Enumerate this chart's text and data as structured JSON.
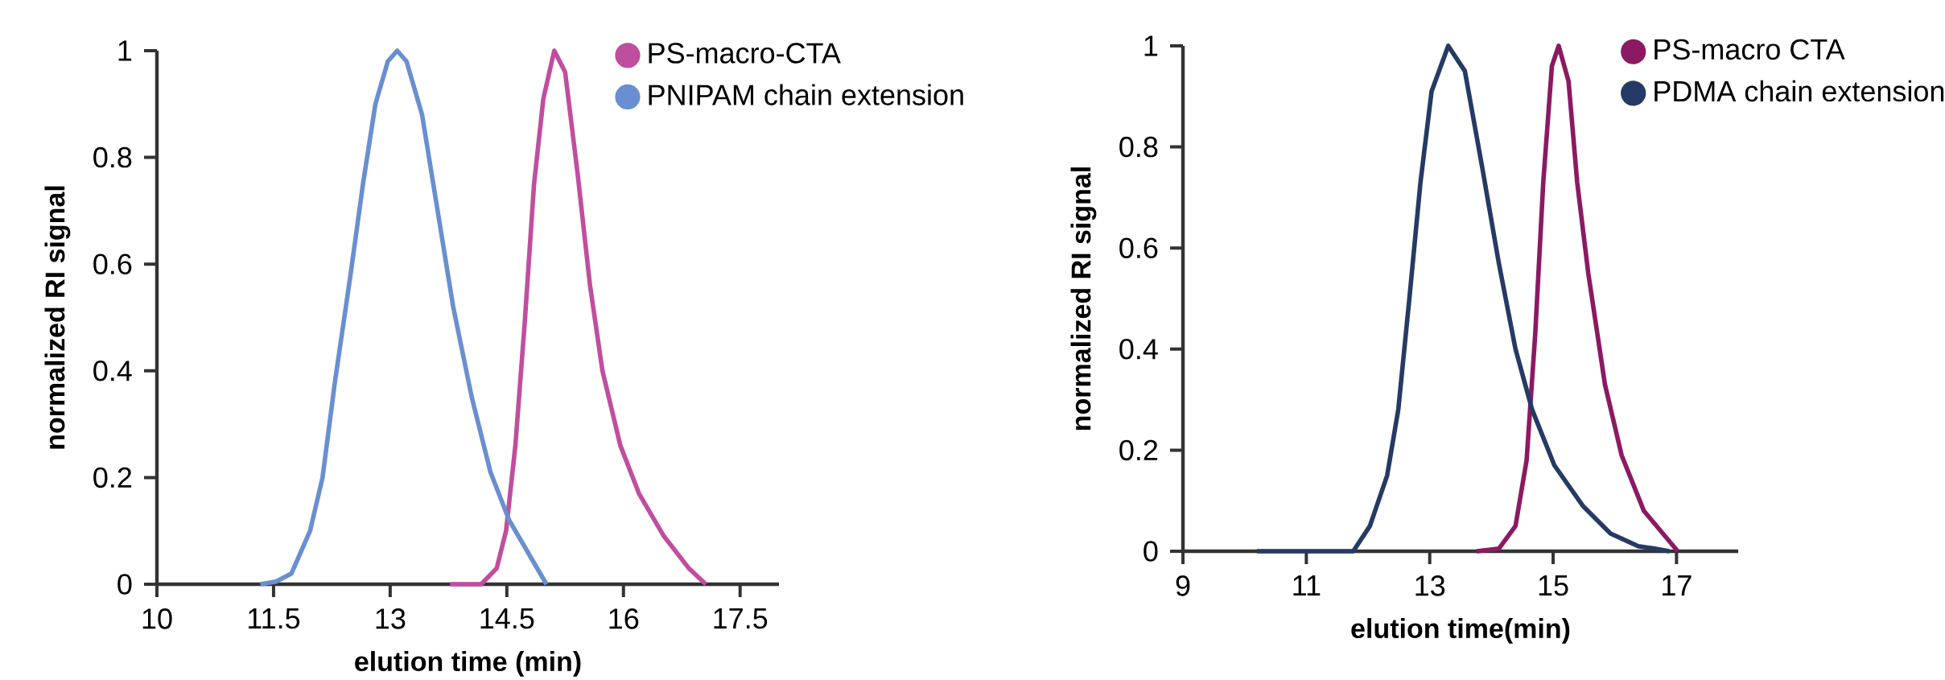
{
  "chart_data": [
    {
      "type": "line",
      "xlabel": "elution time (min)",
      "ylabel": "normalized RI signal",
      "xlim": [
        10,
        18
      ],
      "ylim": [
        0,
        1
      ],
      "xticks": [
        10,
        11.5,
        13,
        14.5,
        16,
        17.5
      ],
      "yticks": [
        0,
        0.2,
        0.4,
        0.6,
        0.8,
        1
      ],
      "legend": "top right",
      "marker": "none",
      "series": [
        {
          "name": "PS-macro-CTA",
          "color": "#c04e9f",
          "x": [
            13.77,
            14.17,
            14.37,
            14.49,
            14.61,
            14.73,
            14.85,
            14.97,
            15.11,
            15.25,
            15.41,
            15.57,
            15.73,
            15.96,
            16.2,
            16.52,
            16.84,
            17.06
          ],
          "values": [
            0,
            0,
            0.03,
            0.1,
            0.26,
            0.49,
            0.75,
            0.91,
            1.0,
            0.96,
            0.77,
            0.56,
            0.4,
            0.26,
            0.17,
            0.09,
            0.03,
            0
          ]
        },
        {
          "name": "PNIPAM chain extension",
          "color": "#6a8fd0",
          "x": [
            11.33,
            11.53,
            11.73,
            11.97,
            12.13,
            12.29,
            12.49,
            12.65,
            12.81,
            12.97,
            13.09,
            13.21,
            13.41,
            13.61,
            13.81,
            14.05,
            14.29,
            14.53,
            14.77,
            15.01
          ],
          "values": [
            0,
            0.005,
            0.02,
            0.1,
            0.2,
            0.38,
            0.58,
            0.75,
            0.9,
            0.98,
            1.0,
            0.98,
            0.88,
            0.7,
            0.52,
            0.35,
            0.21,
            0.12,
            0.06,
            0
          ]
        }
      ]
    },
    {
      "type": "line",
      "xlabel": "elution time(min)",
      "ylabel": "normalized RI signal",
      "xlim": [
        9,
        18
      ],
      "ylim": [
        0,
        1
      ],
      "xticks": [
        9,
        11,
        13,
        15,
        17
      ],
      "yticks": [
        0,
        0.2,
        0.4,
        0.6,
        0.8,
        1
      ],
      "legend": "top right",
      "marker": "none",
      "series": [
        {
          "name": "PS-macro CTA",
          "color": "#8b1a62",
          "x": [
            13.76,
            14.12,
            14.39,
            14.57,
            14.71,
            14.84,
            14.98,
            15.09,
            15.25,
            15.39,
            15.57,
            15.84,
            16.11,
            16.47,
            17.02
          ],
          "values": [
            0,
            0.005,
            0.05,
            0.18,
            0.43,
            0.73,
            0.96,
            1.0,
            0.93,
            0.73,
            0.55,
            0.33,
            0.19,
            0.08,
            0
          ]
        },
        {
          "name": "PDMA chain extension",
          "color": "#253a64",
          "x": [
            10.2,
            11.76,
            12.03,
            12.31,
            12.49,
            12.67,
            12.85,
            13.03,
            13.3,
            13.57,
            13.85,
            14.12,
            14.39,
            14.66,
            15.02,
            15.48,
            15.93,
            16.38,
            16.65,
            16.88
          ],
          "values": [
            0,
            0,
            0.05,
            0.15,
            0.28,
            0.5,
            0.73,
            0.91,
            1.0,
            0.95,
            0.76,
            0.57,
            0.4,
            0.28,
            0.17,
            0.09,
            0.035,
            0.01,
            0.005,
            0
          ]
        }
      ]
    }
  ]
}
